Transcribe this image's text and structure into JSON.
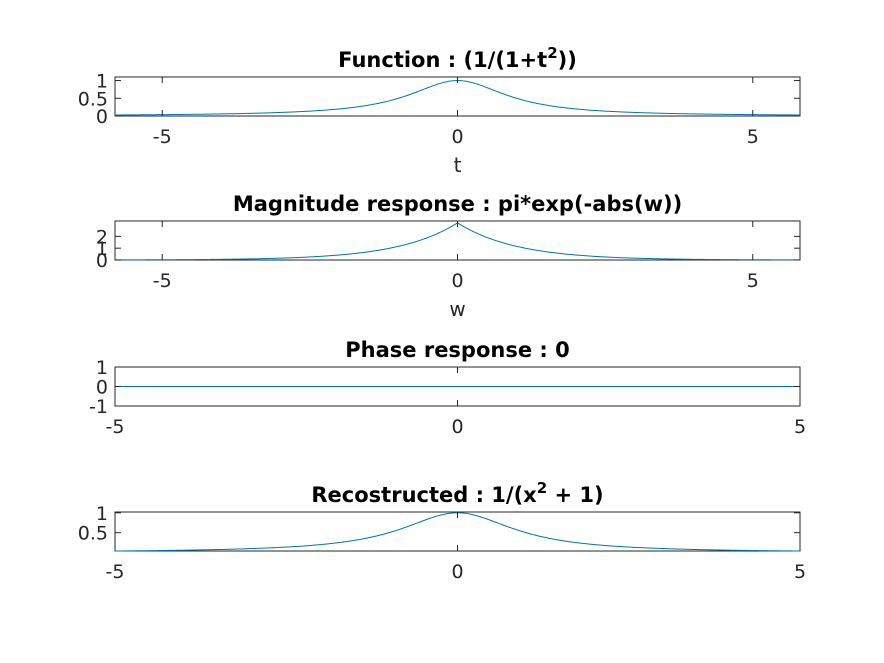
{
  "chart_data": [
    {
      "type": "line",
      "title": "Function : (1/(1+t^2))",
      "title_parts": {
        "pre": "Function : (1/(1+t",
        "sup": "2",
        "post": "))"
      },
      "xlabel": "t",
      "ylabel": "",
      "xlim": [
        -5.8,
        5.8
      ],
      "ylim": [
        0,
        1.1
      ],
      "xticks": [
        {
          "value": -5,
          "label": "-5"
        },
        {
          "value": 0,
          "label": "0"
        },
        {
          "value": 5,
          "label": "5"
        }
      ],
      "yticks": [
        {
          "value": 0,
          "label": "0"
        },
        {
          "value": 0.5,
          "label": "0.5"
        },
        {
          "value": 1,
          "label": "1"
        }
      ],
      "series": [
        {
          "x_range": [
            -5.8,
            5.8
          ],
          "expr": "1/(1+t^2)",
          "color": "#0072bd"
        }
      ],
      "grid": false
    },
    {
      "type": "line",
      "title": "Magnitude response : pi*exp(-abs(w))",
      "xlabel": "w",
      "ylabel": "",
      "xlim": [
        -5.8,
        5.8
      ],
      "ylim": [
        0,
        3.3
      ],
      "xticks": [
        {
          "value": -5,
          "label": "-5"
        },
        {
          "value": 0,
          "label": "0"
        },
        {
          "value": 5,
          "label": "5"
        }
      ],
      "yticks": [
        {
          "value": 0,
          "label": "0"
        },
        {
          "value": 1,
          "label": "1"
        },
        {
          "value": 2,
          "label": "2"
        }
      ],
      "series": [
        {
          "x_range": [
            -5.8,
            5.8
          ],
          "expr": "pi*exp(-abs(w))",
          "color": "#0072bd"
        }
      ],
      "grid": false
    },
    {
      "type": "line",
      "title": "Phase response : 0",
      "xlabel": "",
      "ylabel": "",
      "xlim": [
        -5,
        5
      ],
      "ylim": [
        -1,
        1
      ],
      "xticks": [
        {
          "value": -5,
          "label": "-5"
        },
        {
          "value": 0,
          "label": "0"
        },
        {
          "value": 5,
          "label": "5"
        }
      ],
      "yticks": [
        {
          "value": -1,
          "label": "-1"
        },
        {
          "value": 0,
          "label": "0"
        },
        {
          "value": 1,
          "label": "1"
        }
      ],
      "series": [
        {
          "x_range": [
            -5,
            5
          ],
          "expr": "0",
          "color": "#0072bd"
        }
      ],
      "grid": false
    },
    {
      "type": "line",
      "title": "Recostructed : 1/(x^2 + 1)",
      "title_parts": {
        "pre": "Recostructed : 1/(x",
        "sup": "2",
        "post": " + 1)"
      },
      "xlabel": "",
      "ylabel": "",
      "xlim": [
        -5,
        5
      ],
      "ylim": [
        0.03846,
        1.02
      ],
      "xticks": [
        {
          "value": -5,
          "label": "-5"
        },
        {
          "value": 0,
          "label": "0"
        },
        {
          "value": 5,
          "label": "5"
        }
      ],
      "yticks": [
        {
          "value": 0.5,
          "label": "0.5"
        },
        {
          "value": 1,
          "label": "1"
        }
      ],
      "series": [
        {
          "x_range": [
            -5,
            5
          ],
          "expr": "1/(x^2+1)",
          "color": "#0072bd"
        }
      ],
      "grid": false
    }
  ]
}
